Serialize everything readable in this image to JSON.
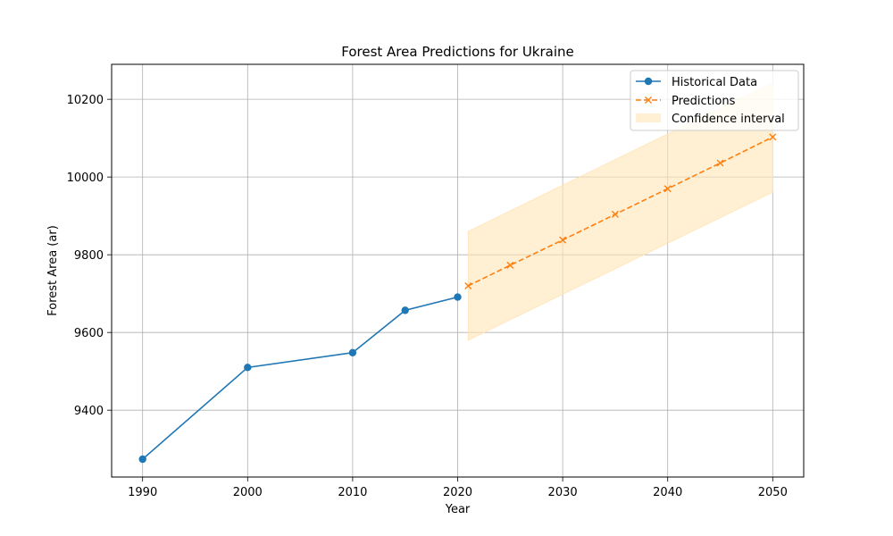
{
  "chart_data": {
    "type": "line",
    "title": "Forest Area Predictions for Ukraine",
    "xlabel": "Year",
    "ylabel": "Forest Area (ar)",
    "xlim": [
      1987.05,
      2052.95
    ],
    "ylim": [
      9228,
      10290
    ],
    "x_ticks": [
      1990,
      2000,
      2010,
      2020,
      2030,
      2040,
      2050
    ],
    "y_ticks": [
      9400,
      9600,
      9800,
      10000,
      10200
    ],
    "grid": true,
    "legend_position": "top-right",
    "series": [
      {
        "name": "Historical Data",
        "style": "solid",
        "marker": "circle",
        "color": "#1f77b4",
        "x": [
          1990,
          2000,
          2010,
          2015,
          2020
        ],
        "y": [
          9274,
          9510,
          9548,
          9657,
          9691
        ]
      },
      {
        "name": "Predictions",
        "style": "dashed",
        "marker": "x",
        "color": "#ff7f0e",
        "x": [
          2021,
          2025,
          2030,
          2035,
          2040,
          2045,
          2050
        ],
        "y": [
          9720,
          9773,
          9838,
          9904,
          9970,
          10036,
          10103
        ]
      }
    ],
    "confidence_interval": {
      "name": "Confidence interval",
      "color": "#ffe4b5",
      "x": [
        2021,
        2050
      ],
      "lower": [
        9580,
        9961
      ],
      "upper": [
        9860,
        10243
      ]
    }
  }
}
